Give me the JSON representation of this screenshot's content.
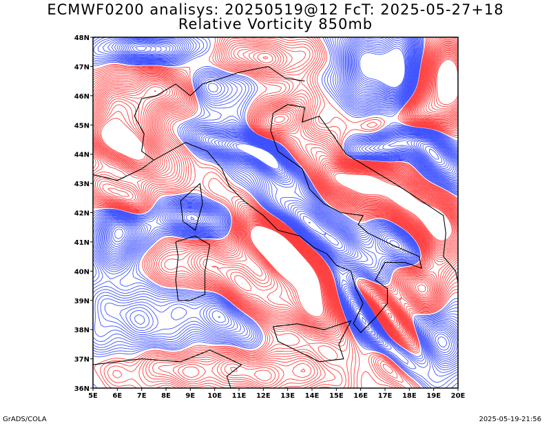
{
  "title": {
    "line1": "ECMWF0200 analisys: 20250519@12 FcT: 2025-05-27+18",
    "line2": "Relative Vorticity 850mb"
  },
  "map": {
    "lon_labels": [
      "5E",
      "6E",
      "7E",
      "8E",
      "9E",
      "10E",
      "11E",
      "12E",
      "13E",
      "14E",
      "15E",
      "16E",
      "17E",
      "18E",
      "19E",
      "20E"
    ],
    "lat_labels": [
      "48N",
      "47N",
      "46N",
      "45N",
      "44N",
      "43N",
      "42N",
      "41N",
      "40N",
      "39N",
      "38N",
      "37N",
      "36N"
    ],
    "lon_range": [
      5,
      20
    ],
    "lat_range": [
      36,
      48
    ],
    "positive_color": "#ff3c3c",
    "negative_color": "#3c50ff",
    "coast_color": "#000000",
    "field": "Relative Vorticity 850mb"
  },
  "footer": {
    "left": "GrADS/COLA",
    "right": "2025-05-19-21:56"
  }
}
